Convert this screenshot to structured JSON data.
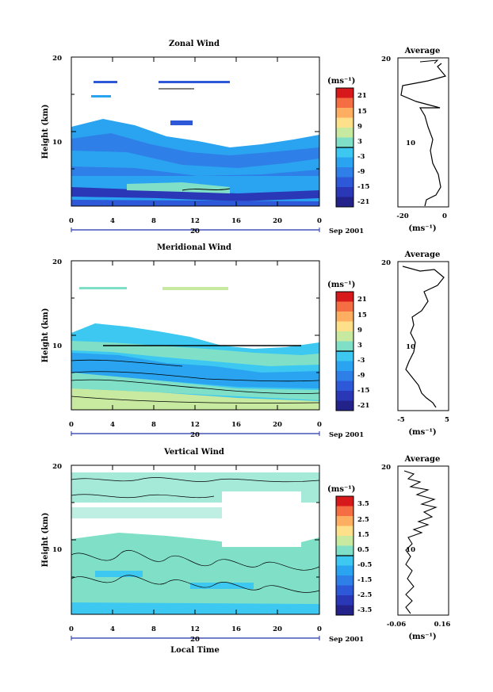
{
  "chart_data": [
    {
      "type": "heatmap",
      "title": "Zonal Wind",
      "ylabel": "Height (km)",
      "yticks": [
        "20",
        "10"
      ],
      "xticks": [
        "0",
        "4",
        "8",
        "12",
        "16",
        "20",
        "0"
      ],
      "day_label": "20",
      "date_label": "Sep 2001",
      "xlabel": "",
      "colorbar": {
        "unit": "(ms⁻¹)",
        "labels": [
          "21",
          "15",
          "9",
          "3",
          "-3",
          "-9",
          "-15",
          "-21"
        ]
      },
      "profile": {
        "title": "Average",
        "unit": "(ms⁻¹)",
        "xticks": [
          "-20",
          "0"
        ],
        "yticks": [
          "20",
          "10"
        ]
      }
    },
    {
      "type": "heatmap",
      "title": "Meridional Wind",
      "ylabel": "Height (km)",
      "yticks": [
        "20",
        "10"
      ],
      "xticks": [
        "0",
        "4",
        "8",
        "12",
        "16",
        "20",
        "0"
      ],
      "day_label": "20",
      "date_label": "Sep 2001",
      "xlabel": "",
      "colorbar": {
        "unit": "(ms⁻¹)",
        "labels": [
          "21",
          "15",
          "9",
          "3",
          "-3",
          "-9",
          "-15",
          "-21"
        ]
      },
      "profile": {
        "title": "Average",
        "unit": "(ms⁻¹)",
        "xticks": [
          "-5",
          "5"
        ],
        "yticks": [
          "20",
          "10"
        ]
      }
    },
    {
      "type": "heatmap",
      "title": "Vertical Wind",
      "ylabel": "Height (km)",
      "yticks": [
        "20",
        "10"
      ],
      "xticks": [
        "0",
        "4",
        "8",
        "12",
        "16",
        "20",
        "0"
      ],
      "day_label": "20",
      "date_label": "Sep 2001",
      "xlabel": "Local Time",
      "colorbar": {
        "unit": "(ms⁻¹)",
        "labels": [
          "3.5",
          "2.5",
          "1.5",
          "0.5",
          "-0.5",
          "-1.5",
          "-2.5",
          "-3.5"
        ]
      },
      "profile": {
        "title": "Average",
        "unit": "(ms⁻¹)",
        "xticks": [
          "-0.06",
          "0.16"
        ],
        "yticks": [
          "20",
          "10"
        ]
      }
    }
  ],
  "colorbar_colors": [
    "#d7191c",
    "#f46d43",
    "#fdae61",
    "#fee08b",
    "#c7e9a0",
    "#7fe0c7",
    "#3cc8f0",
    "#2aa4f0",
    "#2f7fe8",
    "#2d58d8",
    "#2a38b8",
    "#22228a"
  ]
}
